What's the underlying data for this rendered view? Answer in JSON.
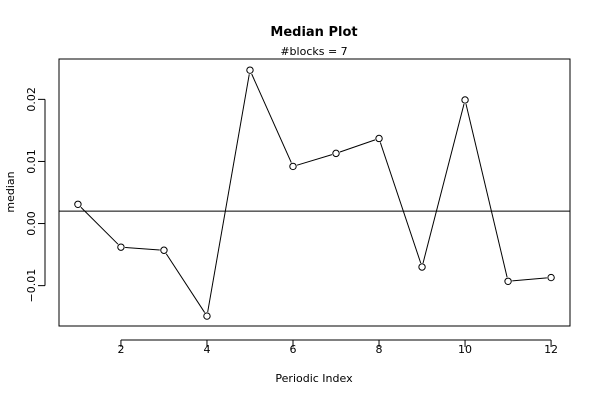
{
  "chart_data": {
    "type": "line",
    "title": "Median Plot",
    "subtitle": "#blocks =  7",
    "xlabel": "Periodic Index",
    "ylabel": "median",
    "xlim": [
      0.56,
      12.44
    ],
    "ylim": [
      -0.0165,
      0.0265
    ],
    "x_ticks": [
      2,
      4,
      6,
      8,
      10,
      12
    ],
    "x_tick_labels": [
      "2",
      "4",
      "6",
      "8",
      "10",
      "12"
    ],
    "y_ticks": [
      -0.01,
      0.0,
      0.01,
      0.02
    ],
    "y_tick_labels": [
      "−0.01",
      "0.00",
      "0.01",
      "0.02"
    ],
    "x": [
      1,
      2,
      3,
      4,
      5,
      6,
      7,
      8,
      9,
      10,
      11,
      12
    ],
    "values": [
      0.0031,
      -0.0038,
      -0.0043,
      -0.0149,
      0.0247,
      0.0092,
      0.0113,
      0.0137,
      -0.007,
      0.0199,
      -0.0093,
      -0.0087
    ],
    "reference_line_y": 0.002,
    "line_color": "#000000",
    "marker": "open-circle",
    "grid": false,
    "legend": "none"
  }
}
